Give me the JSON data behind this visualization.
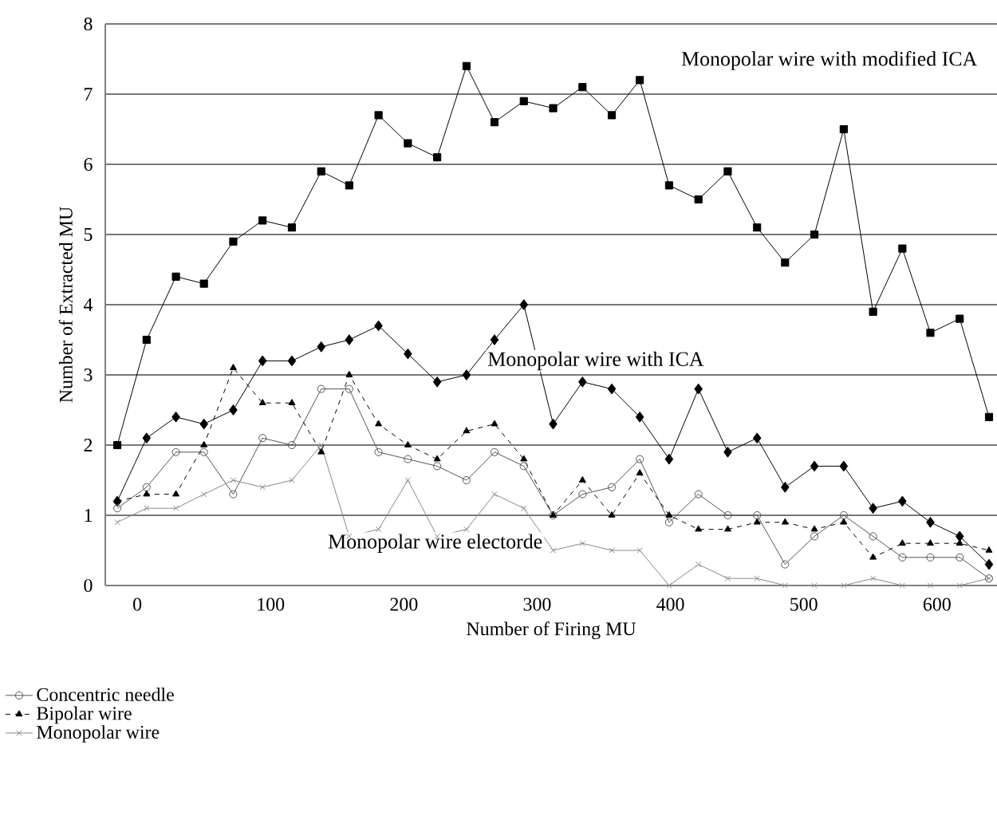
{
  "chart_data": {
    "type": "line",
    "xlabel": "Number of Firing MU",
    "ylabel": "Number of Extracted MU",
    "x": [
      -15,
      7,
      29,
      50,
      72,
      94,
      116,
      138,
      159,
      181,
      203,
      225,
      247,
      268,
      290,
      312,
      334,
      356,
      377,
      399,
      421,
      443,
      465,
      486,
      508,
      530,
      552,
      574,
      595,
      617,
      639
    ],
    "xlim": [
      -24,
      645
    ],
    "xticks": [
      0,
      100,
      200,
      300,
      400,
      500,
      600
    ],
    "ylim": [
      0,
      8
    ],
    "yticks": [
      0,
      1,
      2,
      3,
      4,
      5,
      6,
      7,
      8
    ],
    "grid": "y",
    "legend": "bottom left",
    "annotations": [
      "Monopolar wire with modified ICA",
      "Monopolar wire with ICA",
      "Monopolar wire electorde"
    ],
    "series": [
      {
        "color": "#000000",
        "marker": "square",
        "line_style": "solid",
        "values": [
          2.0,
          3.5,
          4.4,
          4.3,
          4.9,
          5.2,
          5.1,
          5.9,
          5.7,
          6.7,
          6.3,
          6.1,
          7.4,
          6.6,
          6.9,
          6.8,
          7.1,
          6.7,
          7.2,
          5.7,
          5.5,
          5.9,
          5.1,
          4.6,
          5.0,
          6.5,
          3.9,
          4.8,
          3.6,
          3.8,
          2.4
        ]
      },
      {
        "color": "#000000",
        "marker": "diamond",
        "line_style": "solid",
        "values": [
          1.2,
          2.1,
          2.4,
          2.3,
          2.5,
          3.2,
          3.2,
          3.4,
          3.5,
          3.7,
          3.3,
          2.9,
          3.0,
          3.5,
          4.0,
          2.3,
          2.9,
          2.8,
          2.4,
          1.8,
          2.8,
          1.9,
          2.1,
          1.4,
          1.7,
          1.7,
          1.1,
          1.2,
          0.9,
          0.7,
          0.3
        ]
      },
      {
        "name": "Concentric needle",
        "color": "#555555",
        "marker": "circle",
        "line_style": "solid",
        "values": [
          1.1,
          1.4,
          1.9,
          1.9,
          1.3,
          2.1,
          2.0,
          2.8,
          2.8,
          1.9,
          1.8,
          1.7,
          1.5,
          1.9,
          1.7,
          1.0,
          1.3,
          1.4,
          1.8,
          0.9,
          1.3,
          1.0,
          1.0,
          0.3,
          0.7,
          1.0,
          0.7,
          0.4,
          0.4,
          0.4,
          0.1
        ]
      },
      {
        "name": "Bipolar wire",
        "color": "#000000",
        "marker": "triangle",
        "line_style": "dashed",
        "values": [
          1.2,
          1.3,
          1.3,
          2.0,
          3.1,
          2.6,
          2.6,
          1.9,
          3.0,
          2.3,
          2.0,
          1.8,
          2.2,
          2.3,
          1.8,
          1.0,
          1.5,
          1.0,
          1.6,
          1.0,
          0.8,
          0.8,
          0.9,
          0.9,
          0.8,
          0.9,
          0.4,
          0.6,
          0.6,
          0.6,
          0.5
        ]
      },
      {
        "name": "Monopolar wire",
        "color": "#888888",
        "marker": "cross",
        "line_style": "solid",
        "values": [
          0.9,
          1.1,
          1.1,
          1.3,
          1.5,
          1.4,
          1.5,
          2.0,
          0.7,
          0.8,
          1.5,
          0.7,
          0.8,
          1.3,
          1.1,
          0.5,
          0.6,
          0.5,
          0.5,
          0.0,
          0.3,
          0.1,
          0.1,
          0.0,
          0.0,
          0.0,
          0.1,
          0.0,
          0.0,
          0.0,
          0.1
        ]
      }
    ]
  }
}
